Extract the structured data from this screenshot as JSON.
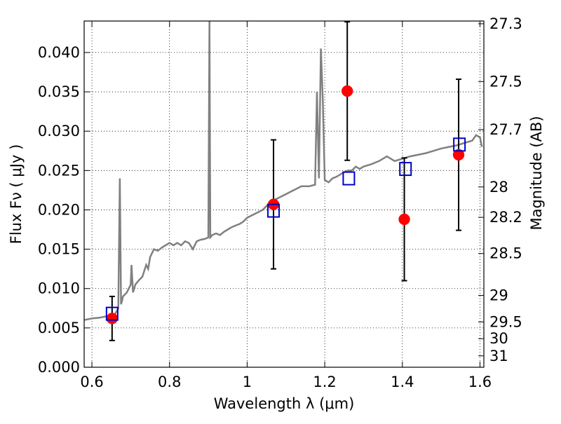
{
  "chart_data": {
    "type": "scatter",
    "title": "",
    "xlabel": "Wavelength  λ (μm)",
    "ylabel": "Flux  Fν  ( μJy )",
    "ylabel_right": "Magnitude (AB)",
    "xlim": [
      0.58,
      1.61
    ],
    "ylim": [
      0.0,
      0.044
    ],
    "grid": true,
    "grid_style": "dotted",
    "x_ticks": [
      {
        "value": 0.6,
        "label": "0.6"
      },
      {
        "value": 0.8,
        "label": "0.8"
      },
      {
        "value": 1.0,
        "label": "1"
      },
      {
        "value": 1.2,
        "label": "1.2"
      },
      {
        "value": 1.4,
        "label": "1.4"
      },
      {
        "value": 1.6,
        "label": "1.6"
      }
    ],
    "y_ticks": [
      {
        "value": 0.0,
        "label": "0.000"
      },
      {
        "value": 0.005,
        "label": "0.005"
      },
      {
        "value": 0.01,
        "label": "0.010"
      },
      {
        "value": 0.015,
        "label": "0.015"
      },
      {
        "value": 0.02,
        "label": "0.020"
      },
      {
        "value": 0.025,
        "label": "0.025"
      },
      {
        "value": 0.03,
        "label": "0.030"
      },
      {
        "value": 0.035,
        "label": "0.035"
      },
      {
        "value": 0.04,
        "label": "0.040"
      }
    ],
    "right_ticks": [
      {
        "mag": 27.3,
        "label": "27.3"
      },
      {
        "mag": 27.5,
        "label": "27.5"
      },
      {
        "mag": 27.7,
        "label": "27.7"
      },
      {
        "mag": 28.0,
        "label": "28"
      },
      {
        "mag": 28.2,
        "label": "28.2"
      },
      {
        "mag": 28.5,
        "label": "28.5"
      },
      {
        "mag": 29.0,
        "label": "29"
      },
      {
        "mag": 29.5,
        "label": "29.5"
      },
      {
        "mag": 30.0,
        "label": "30"
      },
      {
        "mag": 31.0,
        "label": "31"
      }
    ],
    "series": [
      {
        "kind": "line",
        "color": "#808080",
        "x": [
          0.58,
          0.6,
          0.62,
          0.64,
          0.66,
          0.668,
          0.672,
          0.675,
          0.678,
          0.68,
          0.69,
          0.7,
          0.702,
          0.706,
          0.712,
          0.72,
          0.73,
          0.74,
          0.745,
          0.75,
          0.755,
          0.76,
          0.77,
          0.78,
          0.79,
          0.8,
          0.81,
          0.82,
          0.83,
          0.84,
          0.85,
          0.86,
          0.87,
          0.88,
          0.89,
          0.9,
          0.903,
          0.905,
          0.907,
          0.91,
          0.92,
          0.93,
          0.94,
          0.95,
          0.96,
          0.97,
          0.98,
          0.99,
          1.0,
          1.02,
          1.04,
          1.06,
          1.08,
          1.1,
          1.12,
          1.14,
          1.16,
          1.175,
          1.18,
          1.185,
          1.19,
          1.195,
          1.2,
          1.21,
          1.22,
          1.23,
          1.24,
          1.25,
          1.26,
          1.27,
          1.28,
          1.29,
          1.3,
          1.32,
          1.34,
          1.36,
          1.38,
          1.4,
          1.42,
          1.44,
          1.46,
          1.48,
          1.5,
          1.52,
          1.54,
          1.56,
          1.58,
          1.59,
          1.6,
          1.605
        ],
        "y": [
          0.006,
          0.0062,
          0.0063,
          0.0065,
          0.0068,
          0.0075,
          0.024,
          0.008,
          0.0085,
          0.009,
          0.0095,
          0.0105,
          0.013,
          0.0095,
          0.0105,
          0.011,
          0.0115,
          0.013,
          0.0125,
          0.014,
          0.0145,
          0.015,
          0.0148,
          0.0152,
          0.0155,
          0.0158,
          0.0155,
          0.0158,
          0.0155,
          0.016,
          0.0158,
          0.015,
          0.016,
          0.0162,
          0.0163,
          0.0165,
          0.044,
          0.0165,
          0.0166,
          0.0168,
          0.017,
          0.0168,
          0.0172,
          0.0175,
          0.0178,
          0.018,
          0.0182,
          0.0185,
          0.019,
          0.0195,
          0.02,
          0.021,
          0.0215,
          0.022,
          0.0225,
          0.023,
          0.023,
          0.0232,
          0.035,
          0.024,
          0.0405,
          0.034,
          0.0238,
          0.0235,
          0.024,
          0.0242,
          0.0245,
          0.0248,
          0.025,
          0.025,
          0.0255,
          0.0252,
          0.0255,
          0.0258,
          0.0262,
          0.0268,
          0.0262,
          0.0265,
          0.0268,
          0.027,
          0.0272,
          0.0275,
          0.0278,
          0.028,
          0.0282,
          0.0285,
          0.0288,
          0.0295,
          0.0292,
          0.028
        ]
      },
      {
        "kind": "points",
        "marker": "filled-circle",
        "color": "#ff0000",
        "x": [
          0.652,
          1.068,
          1.258,
          1.405,
          1.545
        ],
        "y": [
          0.0062,
          0.0207,
          0.0351,
          0.0188,
          0.027
        ],
        "yerr": [
          0.0028,
          0.0082,
          0.0088,
          0.0078,
          0.0096
        ]
      },
      {
        "kind": "points",
        "marker": "open-square",
        "color": "#0000cc",
        "x": [
          0.652,
          1.068,
          1.262,
          1.408,
          1.547
        ],
        "y": [
          0.0068,
          0.0199,
          0.024,
          0.0252,
          0.0283
        ]
      }
    ]
  }
}
